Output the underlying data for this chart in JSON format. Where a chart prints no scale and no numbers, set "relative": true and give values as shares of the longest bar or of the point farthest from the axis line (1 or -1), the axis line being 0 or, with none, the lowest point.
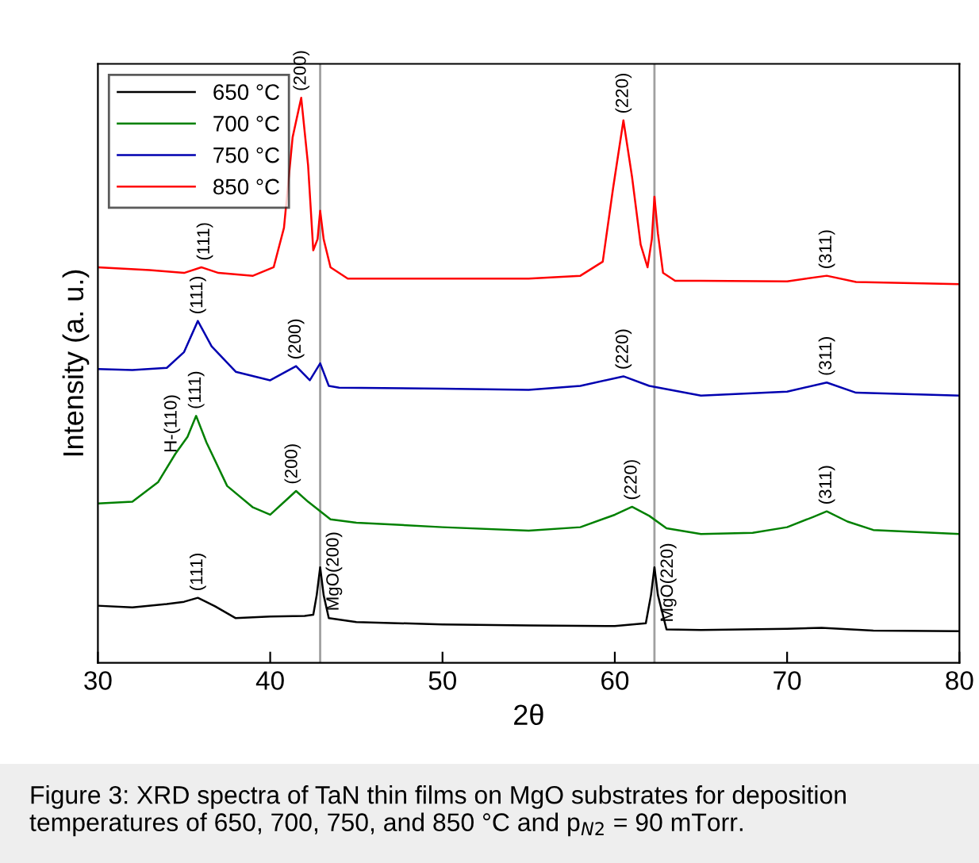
{
  "chart_data": {
    "type": "line",
    "relative": true,
    "xlabel": "2θ",
    "ylabel": "Intensity (a. u.)",
    "xlim": [
      30,
      80
    ],
    "xticks": [
      30,
      40,
      50,
      60,
      70,
      80
    ],
    "tick_labels": "x",
    "grid": false,
    "legend": "top left",
    "marker": "none",
    "line_style": "solid",
    "series": [
      {
        "name": "650 °C",
        "color": "#000000",
        "x": [
          30,
          32,
          34,
          35,
          35.8,
          36.8,
          38,
          40,
          42,
          42.5,
          42.7,
          42.9,
          43.1,
          43.4,
          45,
          50,
          55,
          60,
          61.8,
          62.1,
          62.3,
          62.5,
          63,
          65,
          70,
          72,
          75,
          80
        ],
        "values": [
          0.101,
          0.098,
          0.104,
          0.108,
          0.115,
          0.1,
          0.079,
          0.082,
          0.083,
          0.085,
          0.12,
          0.169,
          0.12,
          0.079,
          0.072,
          0.068,
          0.066,
          0.065,
          0.07,
          0.12,
          0.169,
          0.12,
          0.059,
          0.058,
          0.06,
          0.062,
          0.057,
          0.056
        ]
      },
      {
        "name": "700 °C",
        "color": "#008000",
        "x": [
          30,
          32,
          33.5,
          34.5,
          35.2,
          35.7,
          36.3,
          37.5,
          39,
          40,
          41,
          41.5,
          42.2,
          43.5,
          45,
          50,
          55,
          58,
          60,
          61,
          62,
          63,
          65,
          68,
          70,
          71.5,
          72.3,
          73.5,
          75,
          80
        ],
        "values": [
          0.282,
          0.285,
          0.32,
          0.37,
          0.4,
          0.437,
          0.39,
          0.313,
          0.275,
          0.262,
          0.29,
          0.304,
          0.285,
          0.254,
          0.248,
          0.24,
          0.234,
          0.24,
          0.262,
          0.276,
          0.26,
          0.238,
          0.228,
          0.23,
          0.24,
          0.258,
          0.268,
          0.25,
          0.235,
          0.228
        ]
      },
      {
        "name": "750 °C",
        "color": "#0000b0",
        "x": [
          30,
          32,
          34,
          35,
          35.8,
          36.6,
          38,
          40,
          41.5,
          42.3,
          42.9,
          43.4,
          44,
          50,
          55,
          58,
          60.5,
          62,
          65,
          70,
          72.3,
          74,
          80
        ],
        "values": [
          0.52,
          0.518,
          0.522,
          0.55,
          0.605,
          0.56,
          0.515,
          0.5,
          0.525,
          0.5,
          0.53,
          0.49,
          0.487,
          0.485,
          0.483,
          0.49,
          0.507,
          0.49,
          0.473,
          0.48,
          0.496,
          0.478,
          0.473
        ]
      },
      {
        "name": "850 °C",
        "color": "#ff0000",
        "x": [
          30,
          33,
          35,
          36,
          37,
          39,
          40.2,
          40.8,
          41.3,
          41.8,
          42.2,
          42.5,
          42.75,
          42.9,
          43.1,
          43.5,
          44.5,
          50,
          55,
          58,
          59.3,
          59.9,
          60.5,
          61,
          61.5,
          61.9,
          62.15,
          62.3,
          62.5,
          62.8,
          63.5,
          65,
          70,
          72.3,
          74,
          80
        ],
        "values": [
          0.7,
          0.695,
          0.69,
          0.7,
          0.69,
          0.685,
          0.7,
          0.77,
          0.93,
          1.0,
          0.88,
          0.73,
          0.75,
          0.8,
          0.75,
          0.7,
          0.68,
          0.68,
          0.68,
          0.685,
          0.71,
          0.84,
          0.96,
          0.86,
          0.74,
          0.7,
          0.75,
          0.825,
          0.76,
          0.69,
          0.676,
          0.676,
          0.675,
          0.685,
          0.674,
          0.67
        ]
      }
    ],
    "ref_lines": [
      {
        "axis": "x",
        "value": 42.9,
        "color": "#a0a0a0"
      },
      {
        "axis": "x",
        "value": 62.3,
        "color": "#a0a0a0"
      }
    ],
    "annotations": [
      {
        "text": "(111)",
        "x": 36.2,
        "y": 0.7
      },
      {
        "text": "(200)",
        "x": 41.8,
        "y": 1.0
      },
      {
        "text": "(220)",
        "x": 60.5,
        "y": 0.96
      },
      {
        "text": "(311)",
        "x": 72.3,
        "y": 0.685
      },
      {
        "text": "(111)",
        "x": 35.8,
        "y": 0.605
      },
      {
        "text": "(200)",
        "x": 41.5,
        "y": 0.525
      },
      {
        "text": "(220)",
        "x": 60.5,
        "y": 0.507
      },
      {
        "text": "(311)",
        "x": 72.3,
        "y": 0.496
      },
      {
        "text": "H-(110)",
        "x": 34.3,
        "y": 0.36
      },
      {
        "text": "(111)",
        "x": 35.7,
        "y": 0.437
      },
      {
        "text": "(200)",
        "x": 41.3,
        "y": 0.304
      },
      {
        "text": "(220)",
        "x": 61,
        "y": 0.276
      },
      {
        "text": "(311)",
        "x": 72.3,
        "y": 0.268
      },
      {
        "text": "(111)",
        "x": 35.8,
        "y": 0.115
      },
      {
        "text": "MgO(200)",
        "x": 43.7,
        "y": 0.08
      },
      {
        "text": "MgO(220)",
        "x": 63.1,
        "y": 0.06
      },
      "Figure 3: XRD spectra of TaN thin films on MgO substrates for deposition temperatures of 650, 700, 750, and 850 °C and p$_{N2}$ = 90 mTorr."
    ]
  }
}
